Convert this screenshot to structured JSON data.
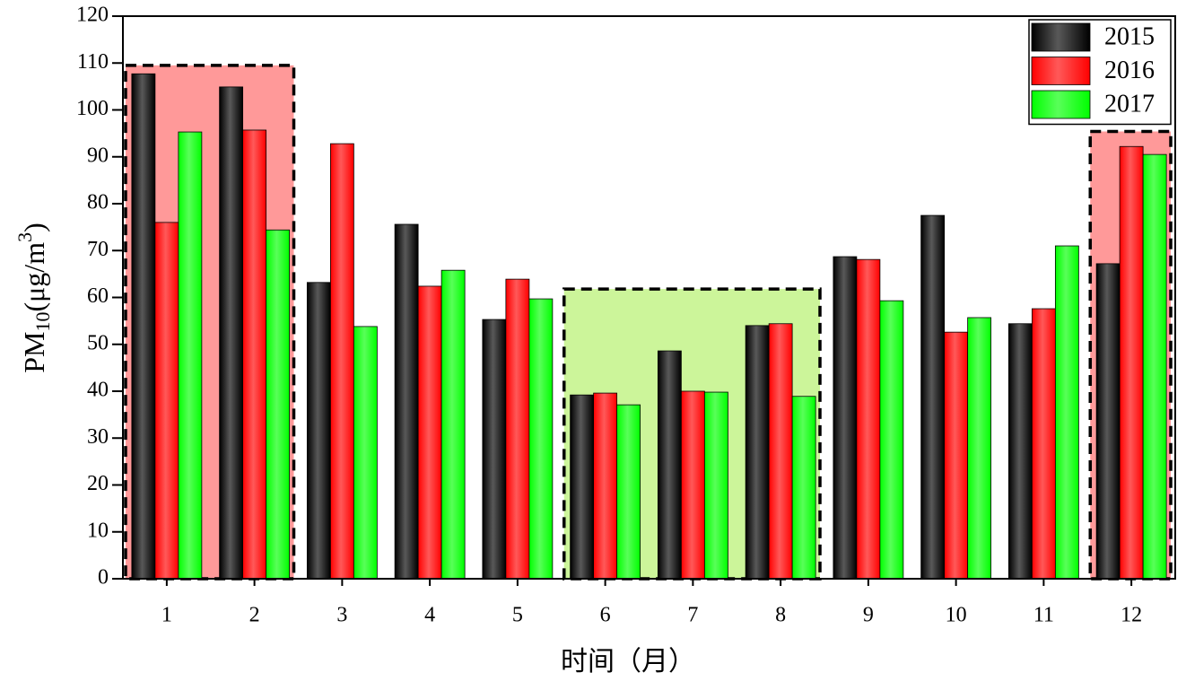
{
  "chart_data": {
    "type": "bar",
    "y_label_parts": [
      "PM",
      "10",
      "(μg/m",
      "3",
      ")"
    ],
    "x_label": "时间（月）",
    "categories": [
      "1",
      "2",
      "3",
      "4",
      "5",
      "6",
      "7",
      "8",
      "9",
      "10",
      "11",
      "12"
    ],
    "series": [
      {
        "name": "2015",
        "color": "#000000",
        "values": [
          107.7,
          104.9,
          63.2,
          75.6,
          55.3,
          39.2,
          48.6,
          54,
          68.7,
          77.5,
          54.4,
          67.2
        ]
      },
      {
        "name": "2016",
        "color": "#ff0000",
        "values": [
          76,
          95.7,
          92.8,
          62.4,
          63.9,
          39.6,
          40,
          54.4,
          68.1,
          52.6,
          57.6,
          92.2
        ]
      },
      {
        "name": "2017",
        "color": "#00ff00",
        "values": [
          95.3,
          74.4,
          53.8,
          65.8,
          59.7,
          37.1,
          39.8,
          38.9,
          59.3,
          55.7,
          71,
          90.5
        ]
      }
    ],
    "highlights": [
      {
        "first": 0,
        "last": 1,
        "top": 109.5,
        "color": "#ff9999"
      },
      {
        "first": 5,
        "last": 7,
        "top": 61.8,
        "color": "#ccf59a"
      },
      {
        "first": 11,
        "last": 11,
        "top": 95.4,
        "color": "#ff9999"
      }
    ],
    "ylim": [
      0,
      120
    ],
    "yticks": [
      0,
      10,
      20,
      30,
      40,
      50,
      60,
      70,
      80,
      90,
      100,
      110,
      120
    ],
    "legend": "top-right"
  }
}
